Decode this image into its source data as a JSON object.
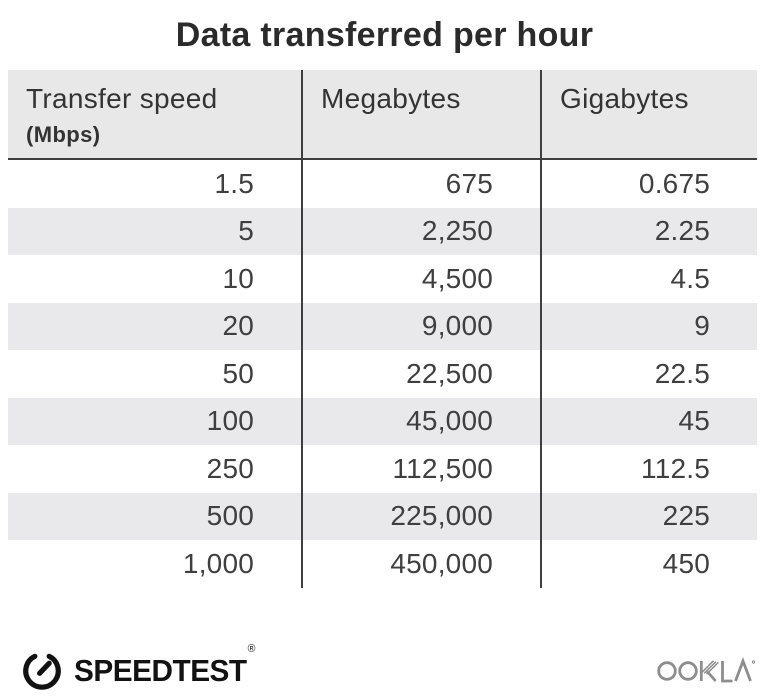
{
  "title": "Data transferred per hour",
  "table": {
    "header": {
      "col1_label": "Transfer speed",
      "col1_sublabel": "(Mbps)",
      "col2_label": "Megabytes",
      "col3_label": "Gigabytes"
    },
    "rows": [
      [
        "1.5",
        "675",
        "0.675"
      ],
      [
        "5",
        "2,250",
        "2.25"
      ],
      [
        "10",
        "4,500",
        "4.5"
      ],
      [
        "20",
        "9,000",
        "9"
      ],
      [
        "50",
        "22,500",
        "22.5"
      ],
      [
        "100",
        "45,000",
        "45"
      ],
      [
        "250",
        "112,500",
        "112.5"
      ],
      [
        "500",
        "225,000",
        "225"
      ],
      [
        "1,000",
        "450,000",
        "450"
      ]
    ]
  },
  "chart_data": {
    "type": "table",
    "title": "Data transferred per hour",
    "columns": [
      "Transfer speed (Mbps)",
      "Megabytes",
      "Gigabytes"
    ],
    "rows": [
      [
        1.5,
        675,
        0.675
      ],
      [
        5,
        2250,
        2.25
      ],
      [
        10,
        4500,
        4.5
      ],
      [
        20,
        9000,
        9
      ],
      [
        50,
        22500,
        22.5
      ],
      [
        100,
        45000,
        45
      ],
      [
        250,
        112500,
        112.5
      ],
      [
        500,
        225000,
        225
      ],
      [
        1000,
        450000,
        450
      ]
    ],
    "layout": {
      "striped_rows": true,
      "stripe_pattern": "every second data row shaded",
      "column_dividers": true,
      "header_shaded": true,
      "number_alignment": "right"
    }
  },
  "footer": {
    "speedtest_label": "SPEEDTEST",
    "speedtest_reg_mark": "®",
    "speedtest_icon": "speedometer-gauge-icon",
    "ookla_label": "OOKLA",
    "ookla_tm_mark": "™"
  },
  "colors": {
    "background": "#ffffff",
    "header_bg": "#e8e8e9",
    "stripe_bg": "#e9e9eb",
    "table_line": "#3f3f3f",
    "title_text": "#2b2b2b",
    "body_text": "#3f3f3f",
    "speedtest_black": "#121212",
    "ookla_gray": "#8d8d8d"
  }
}
